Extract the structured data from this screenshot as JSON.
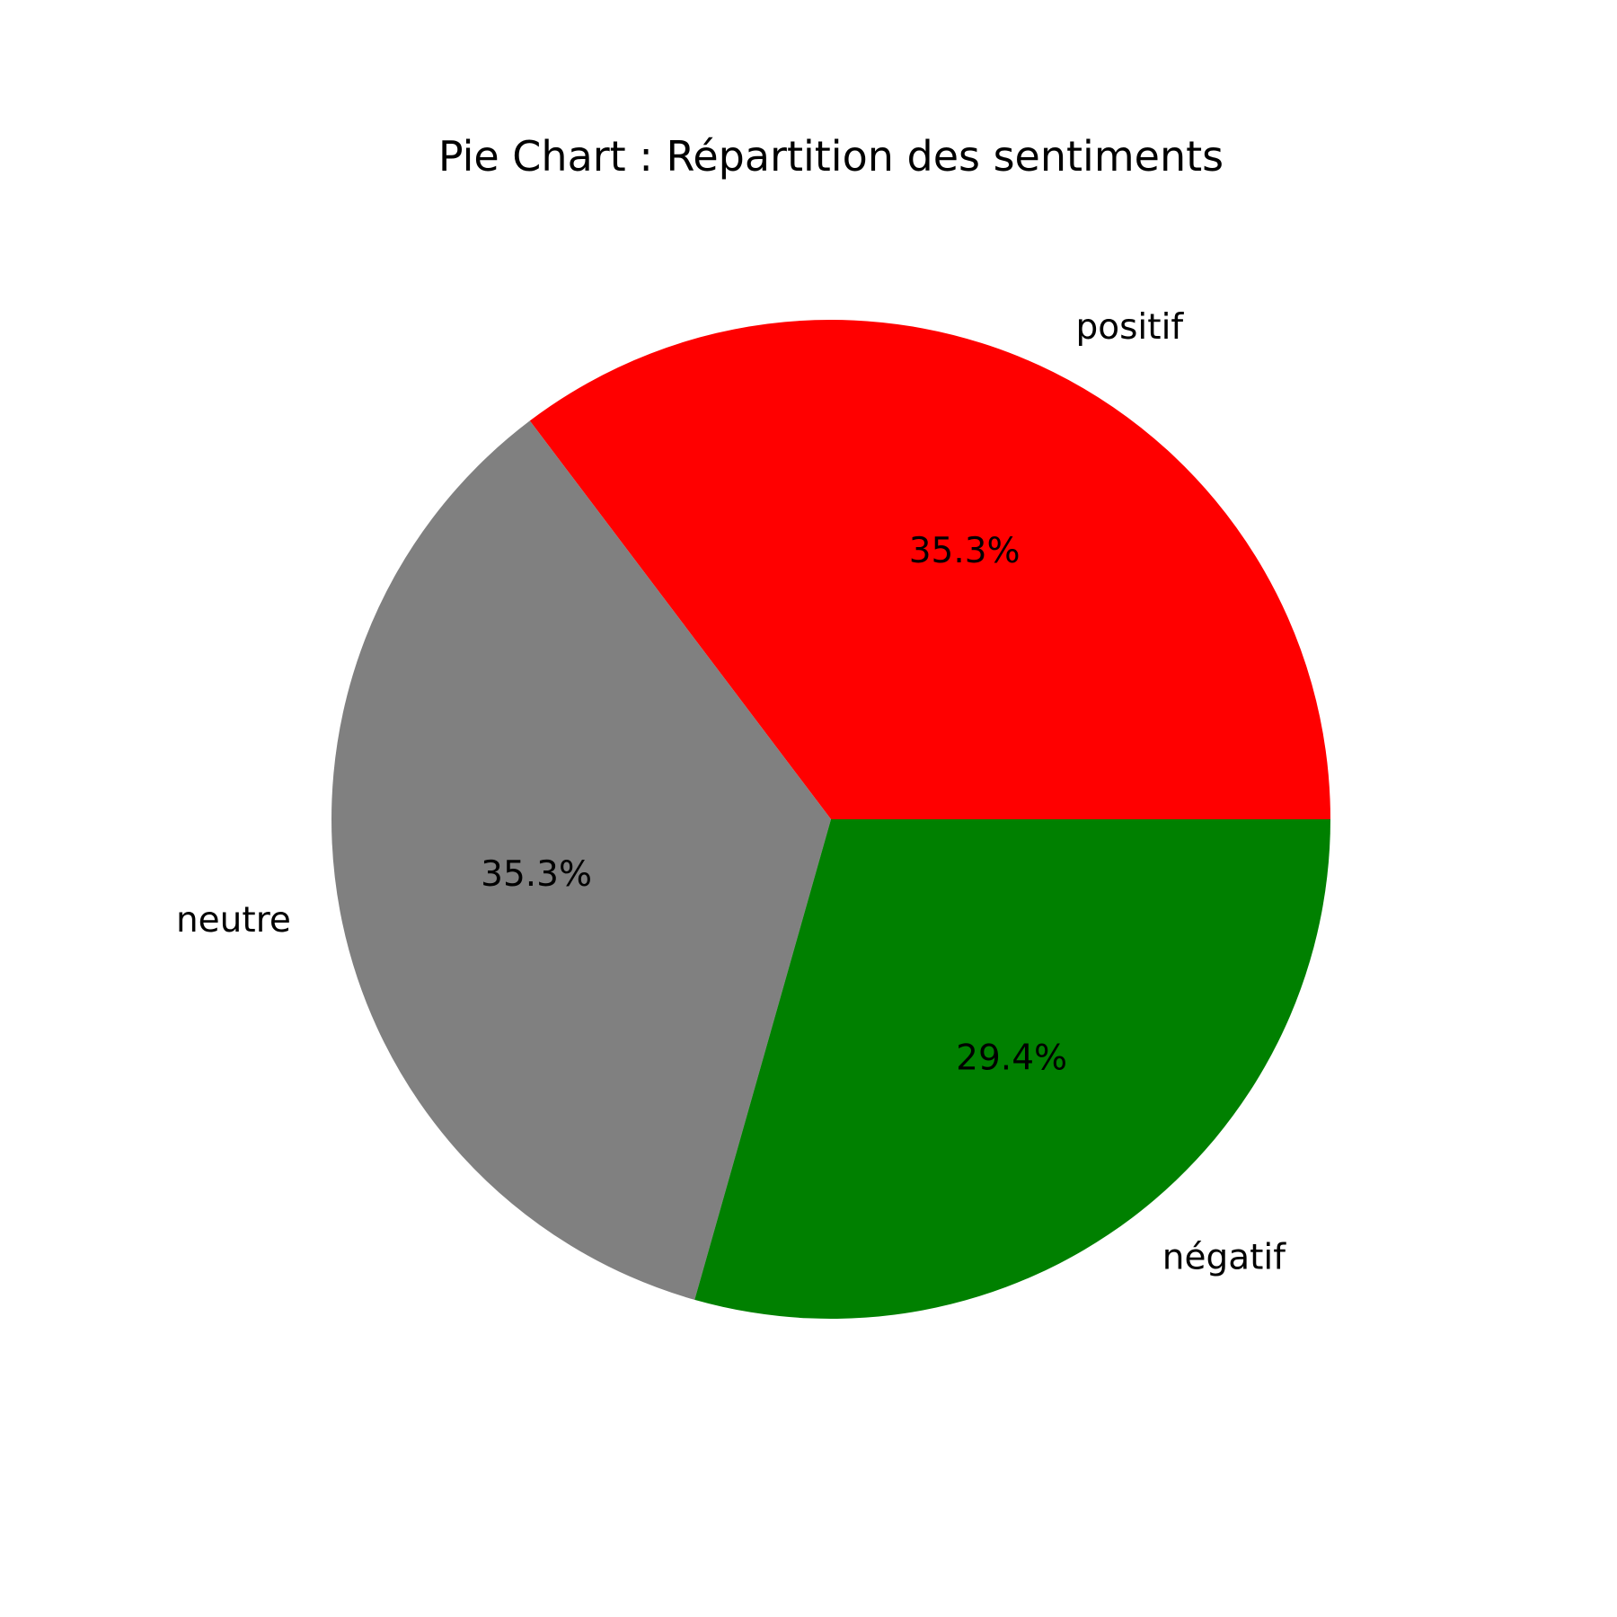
{
  "chart_data": {
    "type": "pie",
    "title": "Pie Chart : Répartition des sentiments",
    "start_angle_deg": 0,
    "direction": "counterclockwise",
    "slices": [
      {
        "label": "positif",
        "value": 35.3,
        "pct_label": "35.3%",
        "color": "#ff0000"
      },
      {
        "label": "neutre",
        "value": 35.3,
        "pct_label": "35.3%",
        "color": "#808080"
      },
      {
        "label": "négatif",
        "value": 29.4,
        "pct_label": "29.4%",
        "color": "#008000"
      }
    ]
  }
}
